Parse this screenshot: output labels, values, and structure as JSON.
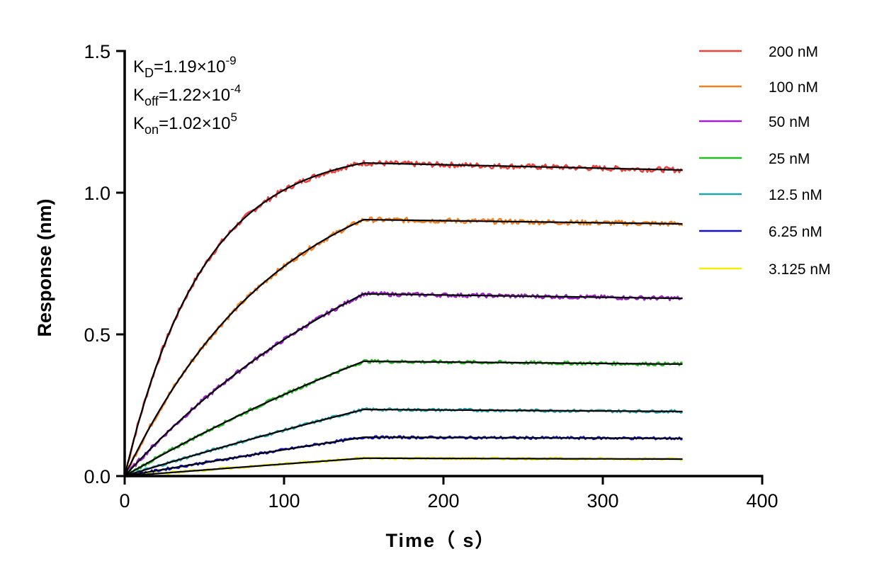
{
  "chart_data": {
    "type": "line",
    "xlabel": "Time（ s）",
    "ylabel": "Response (nm)",
    "xlim": [
      0,
      400
    ],
    "ylim": [
      0,
      1.5
    ],
    "xticks": [
      "0",
      "100",
      "200",
      "300",
      "400"
    ],
    "yticks": [
      "0.0",
      "0.5",
      "1.0",
      "1.5"
    ],
    "grid": false,
    "legend_position": "right",
    "association_end_s": 150,
    "dissociation_end_s": 350,
    "fit_color": "#000000",
    "annotations": [
      {
        "base": "K",
        "sub": "D",
        "value": "=1.19×10",
        "exp": "-9"
      },
      {
        "base": "K",
        "sub": "off",
        "value": "=1.22×10",
        "exp": "-4"
      },
      {
        "base": "K",
        "sub": "on",
        "value": "=1.02×10",
        "exp": "5"
      }
    ],
    "kinetics": {
      "KD": 1.19e-09,
      "koff": 0.000122,
      "kon": 102000.0
    },
    "series": [
      {
        "name": "200 nM",
        "conc_nM": 200,
        "color": "#f0413c",
        "response_at_150s": 1.105,
        "response_at_350s": 1.08
      },
      {
        "name": "100 nM",
        "conc_nM": 100,
        "color": "#f58220",
        "response_at_150s": 0.905,
        "response_at_350s": 0.89
      },
      {
        "name": "50 nM",
        "conc_nM": 50,
        "color": "#a020d0",
        "response_at_150s": 0.643,
        "response_at_350s": 0.627
      },
      {
        "name": "25 nM",
        "conc_nM": 25,
        "color": "#1fbf1f",
        "response_at_150s": 0.405,
        "response_at_350s": 0.395
      },
      {
        "name": "12.5 nM",
        "conc_nM": 12.5,
        "color": "#1fa5b0",
        "response_at_150s": 0.235,
        "response_at_350s": 0.228
      },
      {
        "name": "6.25 nM",
        "conc_nM": 6.25,
        "color": "#1010e0",
        "response_at_150s": 0.137,
        "response_at_350s": 0.133
      },
      {
        "name": "3.125 nM",
        "conc_nM": 3.125,
        "color": "#f5f000",
        "response_at_150s": 0.063,
        "response_at_350s": 0.06
      }
    ]
  }
}
